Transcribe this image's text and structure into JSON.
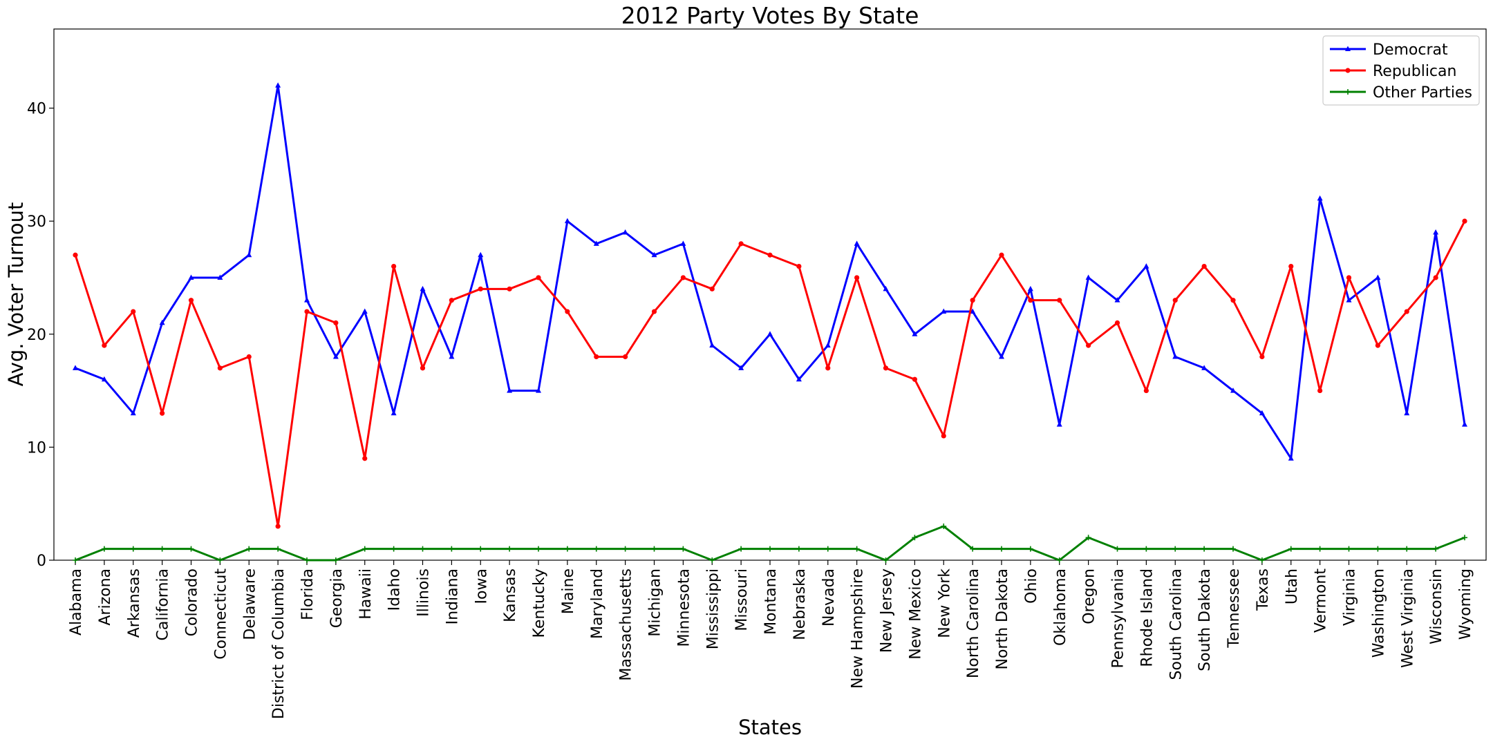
{
  "chart_data": {
    "type": "line",
    "title": "2012 Party Votes By State",
    "xlabel": "States",
    "ylabel": "Avg. Voter Turnout",
    "ylim": [
      0,
      47
    ],
    "yticks": [
      0,
      10,
      20,
      30,
      40
    ],
    "grid": false,
    "legend_position": "top-right",
    "categories": [
      "Alabama",
      "Arizona",
      "Arkansas",
      "California",
      "Colorado",
      "Connecticut",
      "Delaware",
      "District of Columbia",
      "Florida",
      "Georgia",
      "Hawaii",
      "Idaho",
      "Illinois",
      "Indiana",
      "Iowa",
      "Kansas",
      "Kentucky",
      "Maine",
      "Maryland",
      "Massachusetts",
      "Michigan",
      "Minnesota",
      "Mississippi",
      "Missouri",
      "Montana",
      "Nebraska",
      "Nevada",
      "New Hampshire",
      "New Jersey",
      "New Mexico",
      "New York",
      "North Carolina",
      "North Dakota",
      "Ohio",
      "Oklahoma",
      "Oregon",
      "Pennsylvania",
      "Rhode Island",
      "South Carolina",
      "South Dakota",
      "Tennessee",
      "Texas",
      "Utah",
      "Vermont",
      "Virginia",
      "Washington",
      "West Virginia",
      "Wisconsin",
      "Wyoming"
    ],
    "series": [
      {
        "name": "Democrat",
        "color": "#0000ff",
        "marker": "triangle",
        "values": [
          17,
          16,
          13,
          21,
          25,
          25,
          27,
          42,
          23,
          18,
          22,
          13,
          24,
          18,
          27,
          15,
          15,
          30,
          28,
          29,
          27,
          28,
          19,
          17,
          20,
          16,
          19,
          28,
          24,
          20,
          22,
          22,
          18,
          24,
          12,
          25,
          23,
          26,
          18,
          17,
          15,
          13,
          9,
          32,
          23,
          25,
          13,
          29,
          12
        ]
      },
      {
        "name": "Republican",
        "color": "#ff0000",
        "marker": "circle",
        "values": [
          27,
          19,
          22,
          13,
          23,
          17,
          18,
          3,
          22,
          21,
          9,
          26,
          17,
          23,
          24,
          24,
          25,
          22,
          18,
          18,
          22,
          25,
          24,
          28,
          27,
          26,
          17,
          25,
          17,
          16,
          11,
          23,
          27,
          23,
          23,
          19,
          21,
          15,
          23,
          26,
          23,
          18,
          26,
          15,
          25,
          19,
          22,
          25,
          30
        ]
      },
      {
        "name": "Other Parties",
        "color": "#008000",
        "marker": "plus",
        "values": [
          0,
          1,
          1,
          1,
          1,
          0,
          1,
          1,
          0,
          0,
          1,
          1,
          1,
          1,
          1,
          1,
          1,
          1,
          1,
          1,
          1,
          1,
          0,
          1,
          1,
          1,
          1,
          1,
          0,
          2,
          3,
          1,
          1,
          1,
          0,
          2,
          1,
          1,
          1,
          1,
          1,
          0,
          1,
          1,
          1,
          1,
          1,
          1,
          2
        ]
      }
    ]
  }
}
